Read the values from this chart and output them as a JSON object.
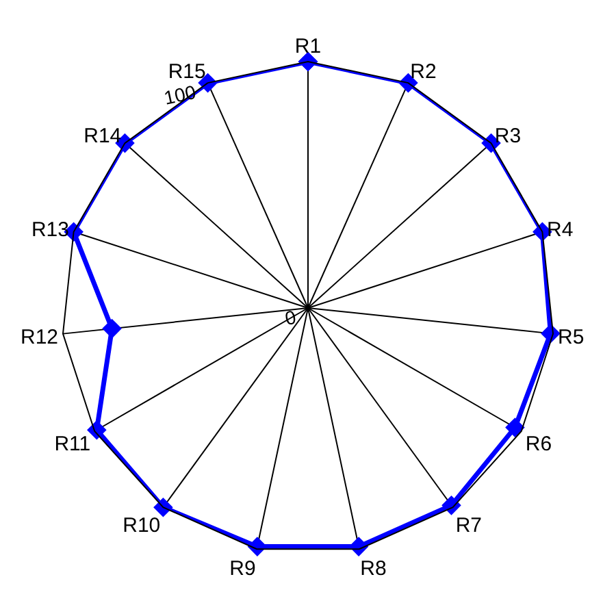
{
  "chart_data": {
    "type": "radar",
    "categories": [
      "R1",
      "R2",
      "R3",
      "R4",
      "R5",
      "R6",
      "R7",
      "R8",
      "R9",
      "R10",
      "R11",
      "R12",
      "R13",
      "R14",
      "R15"
    ],
    "series": [
      {
        "color": "#0000ff",
        "values": [
          100,
          100,
          100,
          100,
          99,
          97,
          99,
          99,
          99,
          100,
          99,
          80,
          100,
          100,
          100
        ]
      }
    ],
    "ylim": [
      0,
      100
    ],
    "yticks": [
      0,
      100
    ],
    "grid": true,
    "marker": "diamond",
    "line_style": "solid"
  }
}
